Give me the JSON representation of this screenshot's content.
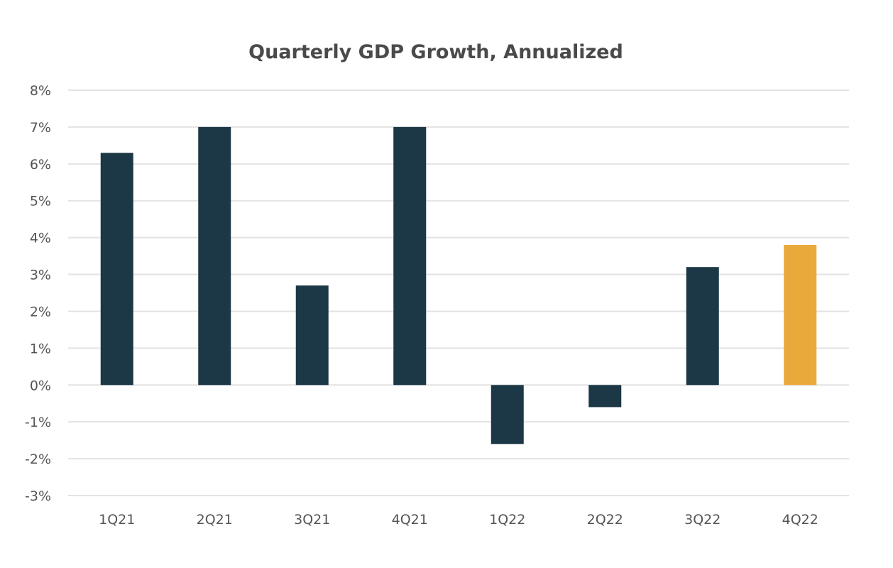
{
  "chart_data": {
    "type": "bar",
    "title": "Quarterly GDP Growth, Annualized",
    "xlabel": "",
    "ylabel": "",
    "categories": [
      "1Q21",
      "2Q21",
      "3Q21",
      "4Q21",
      "1Q22",
      "2Q22",
      "3Q22",
      "4Q22"
    ],
    "values": [
      6.3,
      7.0,
      2.7,
      7.0,
      -1.6,
      -0.6,
      3.2,
      3.8
    ],
    "colors": [
      "#1c3746",
      "#1c3746",
      "#1c3746",
      "#1c3746",
      "#1c3746",
      "#1c3746",
      "#1c3746",
      "#e9a93b"
    ],
    "ylim": [
      -3,
      8
    ],
    "yticks": [
      8,
      7,
      6,
      5,
      4,
      3,
      2,
      1,
      0,
      -1,
      -2,
      -3
    ],
    "ytick_labels": [
      "8%",
      "7%",
      "6%",
      "5%",
      "4%",
      "3%",
      "2%",
      "1%",
      "0%",
      "-1%",
      "-2%",
      "-3%"
    ],
    "grid": true,
    "legend": "none",
    "colors_meta": {
      "bar": "#1c3746",
      "highlight": "#e9a93b",
      "grid": "#e3e3e3"
    }
  }
}
